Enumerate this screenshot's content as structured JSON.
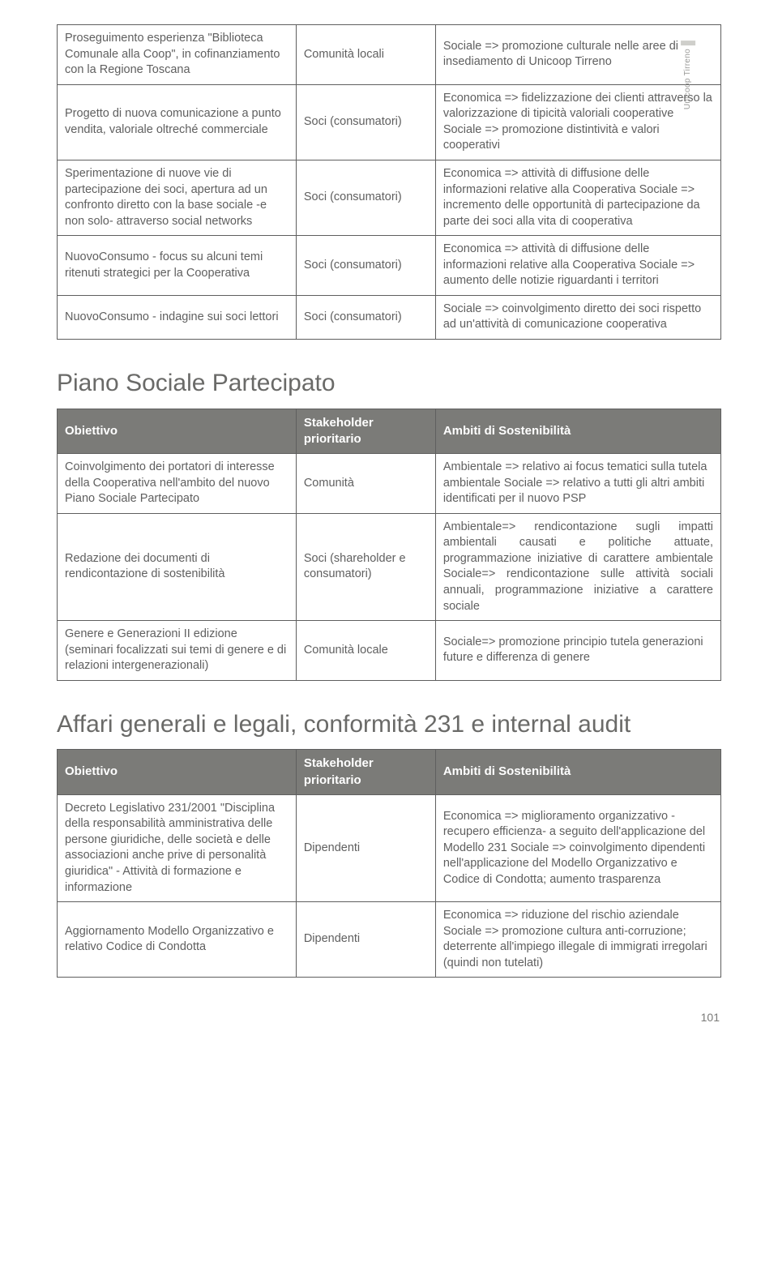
{
  "sideLabel": "Unicoop Tirreno",
  "pageNumber": "101",
  "table1": {
    "rows": [
      {
        "c1": "Proseguimento esperienza \"Biblioteca Comunale alla Coop\", in cofinanziamento con la Regione Toscana",
        "c2": "Comunità locali",
        "c3": "Sociale => promozione culturale nelle aree di insediamento di Unicoop Tirreno"
      },
      {
        "c1": "Progetto di nuova comunicazione a punto vendita, valoriale oltreché commerciale",
        "c2": "Soci (consumatori)",
        "c3": "Economica => fidelizzazione dei clienti attraverso la valorizzazione di tipicità valoriali cooperative Sociale => promozione distintività e valori cooperativi"
      },
      {
        "c1": "Sperimentazione di nuove vie di partecipazione dei soci, apertura ad un confronto diretto con la base sociale -e non solo- attraverso social networks",
        "c2": "Soci (consumatori)",
        "c3": "Economica => attività di diffusione delle informazioni relative alla Cooperativa Sociale => incremento delle opportunità di partecipazione da parte dei soci alla vita di cooperativa"
      },
      {
        "c1": "NuovoConsumo - focus su alcuni temi ritenuti strategici per la Cooperativa",
        "c2": "Soci (consumatori)",
        "c3": "Economica => attività di diffusione delle informazioni relative alla Cooperativa Sociale => aumento delle notizie riguardanti i territori"
      },
      {
        "c1": "NuovoConsumo - indagine sui soci lettori",
        "c2": "Soci (consumatori)",
        "c3": "Sociale => coinvolgimento diretto dei soci rispetto ad un'attività di comunicazione cooperativa"
      }
    ]
  },
  "section2": {
    "title": "Piano Sociale Partecipato",
    "headers": {
      "h1": "Obiettivo",
      "h2": "Stakeholder prioritario",
      "h3": "Ambiti di Sostenibilità"
    },
    "rows": [
      {
        "c1": "Coinvolgimento dei portatori di interesse della Cooperativa nell'ambito del nuovo Piano Sociale Partecipato",
        "c2": "Comunità",
        "c3": "Ambientale => relativo ai focus tematici sulla tutela ambientale\nSociale => relativo a tutti gli altri ambiti identificati per il nuovo PSP"
      },
      {
        "c1": "Redazione dei documenti di rendicontazione di sostenibilità",
        "c2": "Soci (shareholder e consumatori)",
        "c3": "Ambientale=> rendicontazione sugli impatti ambientali causati e politiche attuate, programmazione iniziative di carattere ambientale Sociale=> rendicontazione sulle attività sociali annuali, programmazione iniziative a carattere sociale",
        "c3justify": true
      },
      {
        "c1": "Genere e Generazioni II edizione (seminari focalizzati sui temi di genere e di relazioni intergenerazionali)",
        "c2": "Comunità locale",
        "c3": "Sociale=> promozione principio tutela generazioni future e differenza di genere"
      }
    ]
  },
  "section3": {
    "title": "Affari generali e legali, conformità 231 e internal audit",
    "headers": {
      "h1": "Obiettivo",
      "h2": "Stakeholder prioritario",
      "h3": "Ambiti di Sostenibilità"
    },
    "rows": [
      {
        "c1": "Decreto Legislativo 231/2001 \"Disciplina della responsabilità amministrativa delle persone giuridiche, delle società e delle associazioni anche prive di personalità giuridica\" - Attività di formazione e informazione",
        "c2": "Dipendenti",
        "c3": "Economica => miglioramento organizzativo -recupero efficienza- a seguito dell'applicazione del Modello 231\nSociale => coinvolgimento dipendenti nell'applicazione del Modello Organizzativo e Codice di Condotta; aumento trasparenza"
      },
      {
        "c1": "Aggiornamento Modello Organizzativo e relativo Codice di Condotta",
        "c2": "Dipendenti",
        "c3": "Economica => riduzione del rischio aziendale Sociale => promozione cultura anti-corruzione; deterrente all'impiego illegale di immigrati irregolari (quindi non tutelati)"
      }
    ]
  }
}
